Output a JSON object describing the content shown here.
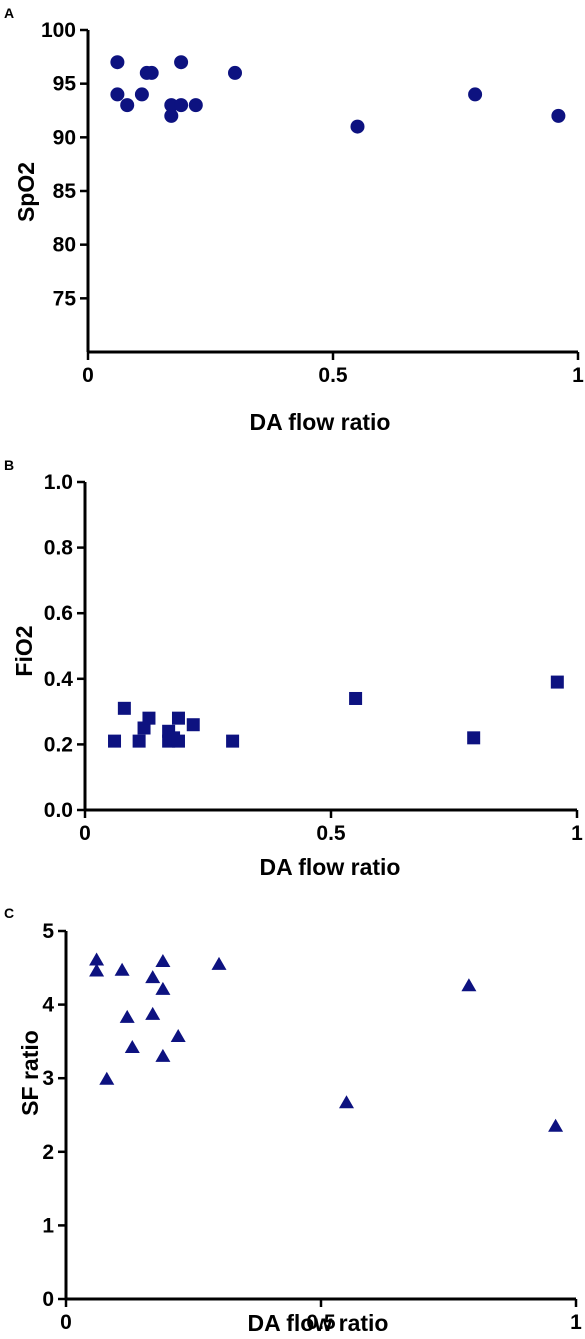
{
  "figure": {
    "marker_color": "#0d1280"
  },
  "chart_data": [
    {
      "panel_label": "A",
      "type": "scatter",
      "marker": "circle",
      "xlabel": "DA flow ratio",
      "ylabel": "SpO2",
      "xlim": [
        0,
        1
      ],
      "ylim": [
        70,
        100
      ],
      "xticks": [
        0,
        0.5,
        1
      ],
      "xtick_labels": [
        "0",
        "0.5",
        "1"
      ],
      "yticks": [
        75,
        80,
        85,
        90,
        95,
        100
      ],
      "ytick_labels": [
        "75",
        "80",
        "85",
        "90",
        "95",
        "100"
      ],
      "grid": false,
      "points": [
        {
          "x": 0.06,
          "y": 97
        },
        {
          "x": 0.06,
          "y": 94
        },
        {
          "x": 0.08,
          "y": 93
        },
        {
          "x": 0.11,
          "y": 94
        },
        {
          "x": 0.12,
          "y": 96
        },
        {
          "x": 0.13,
          "y": 96
        },
        {
          "x": 0.17,
          "y": 93
        },
        {
          "x": 0.17,
          "y": 92
        },
        {
          "x": 0.19,
          "y": 97
        },
        {
          "x": 0.19,
          "y": 93
        },
        {
          "x": 0.22,
          "y": 93
        },
        {
          "x": 0.3,
          "y": 96
        },
        {
          "x": 0.55,
          "y": 91
        },
        {
          "x": 0.79,
          "y": 94
        },
        {
          "x": 0.96,
          "y": 92
        }
      ]
    },
    {
      "panel_label": "B",
      "type": "scatter",
      "marker": "square",
      "xlabel": "DA flow ratio",
      "ylabel": "FiO2",
      "xlim": [
        0,
        1
      ],
      "ylim": [
        0,
        1
      ],
      "xticks": [
        0,
        0.5,
        1
      ],
      "xtick_labels": [
        "0",
        "0.5",
        "1"
      ],
      "yticks": [
        0,
        0.2,
        0.4,
        0.6,
        0.8,
        1.0
      ],
      "ytick_labels": [
        "0.0",
        "0.2",
        "0.4",
        "0.6",
        "0.8",
        "1.0"
      ],
      "grid": false,
      "points": [
        {
          "x": 0.06,
          "y": 0.21
        },
        {
          "x": 0.08,
          "y": 0.31
        },
        {
          "x": 0.11,
          "y": 0.21
        },
        {
          "x": 0.12,
          "y": 0.25
        },
        {
          "x": 0.13,
          "y": 0.28
        },
        {
          "x": 0.17,
          "y": 0.24
        },
        {
          "x": 0.17,
          "y": 0.21
        },
        {
          "x": 0.18,
          "y": 0.22
        },
        {
          "x": 0.19,
          "y": 0.28
        },
        {
          "x": 0.19,
          "y": 0.21
        },
        {
          "x": 0.22,
          "y": 0.26
        },
        {
          "x": 0.3,
          "y": 0.21
        },
        {
          "x": 0.55,
          "y": 0.34
        },
        {
          "x": 0.79,
          "y": 0.22
        },
        {
          "x": 0.96,
          "y": 0.39
        }
      ]
    },
    {
      "panel_label": "C",
      "type": "scatter",
      "marker": "triangle",
      "xlabel": "DA flow ratio",
      "ylabel": "SF ratio",
      "xlim": [
        0,
        1
      ],
      "ylim": [
        0,
        5
      ],
      "xticks": [
        0,
        0.5,
        1
      ],
      "xtick_labels": [
        "0",
        "0.5",
        "1"
      ],
      "yticks": [
        0,
        1,
        2,
        3,
        4,
        5
      ],
      "ytick_labels": [
        "0",
        "1",
        "2",
        "3",
        "4",
        "5"
      ],
      "grid": false,
      "points": [
        {
          "x": 0.06,
          "y": 4.62
        },
        {
          "x": 0.06,
          "y": 4.47
        },
        {
          "x": 0.08,
          "y": 3.0
        },
        {
          "x": 0.11,
          "y": 4.48
        },
        {
          "x": 0.12,
          "y": 3.84
        },
        {
          "x": 0.13,
          "y": 3.43
        },
        {
          "x": 0.17,
          "y": 4.38
        },
        {
          "x": 0.17,
          "y": 3.88
        },
        {
          "x": 0.19,
          "y": 4.6
        },
        {
          "x": 0.19,
          "y": 4.22
        },
        {
          "x": 0.19,
          "y": 3.31
        },
        {
          "x": 0.22,
          "y": 3.58
        },
        {
          "x": 0.3,
          "y": 4.56
        },
        {
          "x": 0.55,
          "y": 2.68
        },
        {
          "x": 0.79,
          "y": 4.27
        },
        {
          "x": 0.96,
          "y": 2.36
        }
      ]
    }
  ]
}
